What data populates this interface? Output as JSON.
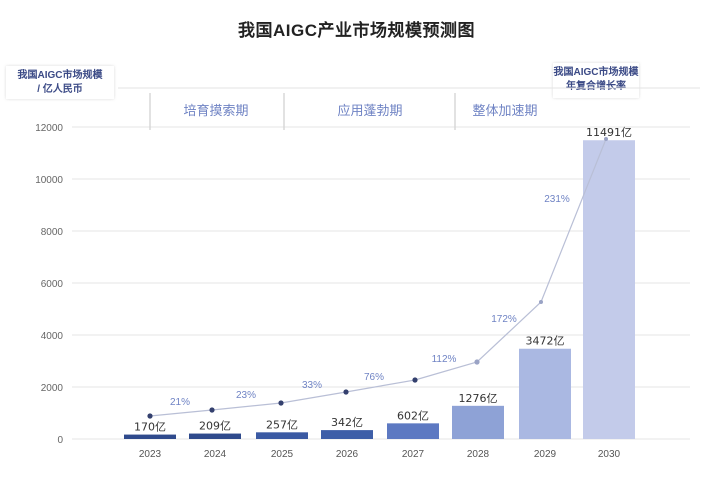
{
  "title": "我国AIGC产业市场规模预测图",
  "left_axis_box": {
    "line1": "我国AIGC市场规模",
    "line2": "/ 亿人民币"
  },
  "right_axis_box": {
    "line1": "我国AIGC市场规模",
    "line2": "年复合增长率"
  },
  "phases": [
    {
      "label": "培育摸索期"
    },
    {
      "label": "应用蓬勃期"
    },
    {
      "label": "整体加速期"
    }
  ],
  "colors": {
    "bar_dark": "#2f4a8c",
    "bar_mid": "#5d79c2",
    "bar_light": "#c3cbea",
    "line": "#b9bfd6",
    "point": "#34406e",
    "pct_label": "#6f83c4"
  },
  "chart_data": {
    "type": "bar",
    "title": "我国AIGC产业市场规模预测图",
    "xlabel": "",
    "ylabel": "我国AIGC市场规模 / 亿人民币",
    "ylim": [
      0,
      12000
    ],
    "yticks": [
      0,
      2000,
      4000,
      6000,
      8000,
      10000,
      12000
    ],
    "grid": true,
    "categories": [
      "2023",
      "2024",
      "2025",
      "2026",
      "2027",
      "2028",
      "2029",
      "2030"
    ],
    "series": [
      {
        "name": "我国AIGC市场规模 (亿人民币)",
        "type": "bar",
        "values": [
          170,
          209,
          257,
          342,
          602,
          1276,
          3472,
          11491
        ],
        "labels": [
          "170亿",
          "209亿",
          "257亿",
          "342亿",
          "602亿",
          "1276亿",
          "3472亿",
          "11491亿"
        ]
      },
      {
        "name": "我国AIGC市场规模年复合增长率",
        "type": "line",
        "values": [
          null,
          21,
          23,
          33,
          76,
          112,
          172,
          231
        ],
        "labels": [
          "21%",
          "23%",
          "33%",
          "76%",
          "112%",
          "172%",
          "231%"
        ]
      }
    ],
    "phases": [
      {
        "label": "培育摸索期",
        "range": [
          "2023",
          "2025"
        ]
      },
      {
        "label": "应用蓬勃期",
        "range": [
          "2026",
          "2027"
        ]
      },
      {
        "label": "整体加速期",
        "range": [
          "2028",
          "2030"
        ]
      }
    ]
  }
}
